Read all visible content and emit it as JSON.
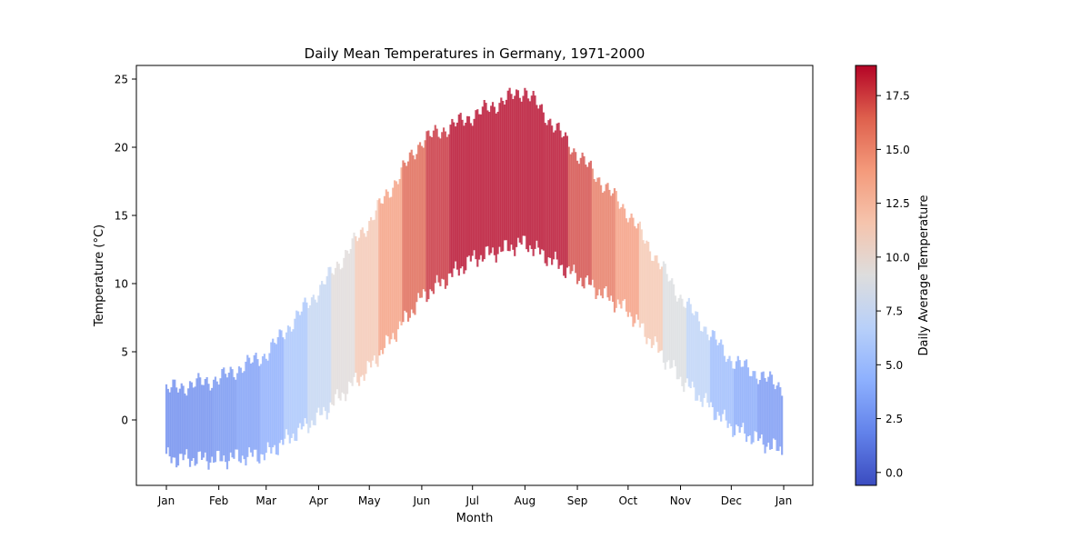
{
  "chart_data": {
    "type": "bar",
    "subtype": "floating-range",
    "title": "Daily Mean Temperatures in Germany, 1971-2000",
    "xlabel": "Month",
    "ylabel": "Temperature (°C)",
    "x_ticks": [
      "Jan",
      "Feb",
      "Mar",
      "Apr",
      "May",
      "Jun",
      "Jul",
      "Aug",
      "Sep",
      "Oct",
      "Nov",
      "Dec",
      "Jan"
    ],
    "y_ticks": [
      "0",
      "5",
      "10",
      "15",
      "20",
      "25"
    ],
    "ylim": [
      -4.8,
      26.0
    ],
    "grid": false,
    "colorbar": {
      "label": "Daily Average Temperature",
      "range": [
        -0.6,
        18.9
      ],
      "ticks": [
        "0.0",
        "2.5",
        "5.0",
        "7.5",
        "10.0",
        "12.5",
        "15.0",
        "17.5"
      ],
      "colormap": "coolwarm",
      "low_color": "#3b4cc0",
      "mid_color": "#dddddd",
      "high_color": "#b40426"
    },
    "x_unit": "day of year (Jan 1 to Dec 31, ticks at month starts)",
    "daily_range_knots": [
      {
        "day": 0,
        "low": -2.8,
        "high": 2.2
      },
      {
        "day": 31,
        "low": -2.9,
        "high": 3.0
      },
      {
        "day": 59,
        "low": -2.5,
        "high": 4.8
      },
      {
        "day": 90,
        "low": 0.2,
        "high": 9.5
      },
      {
        "day": 120,
        "low": 3.8,
        "high": 14.5
      },
      {
        "day": 151,
        "low": 9.0,
        "high": 20.5
      },
      {
        "day": 181,
        "low": 11.8,
        "high": 22.3
      },
      {
        "day": 212,
        "low": 13.0,
        "high": 24.2
      },
      {
        "day": 243,
        "low": 10.5,
        "high": 19.5
      },
      {
        "day": 273,
        "low": 8.0,
        "high": 15.2
      },
      {
        "day": 304,
        "low": 3.0,
        "high": 9.0
      },
      {
        "day": 334,
        "low": -0.5,
        "high": 4.4
      },
      {
        "day": 364,
        "low": -2.3,
        "high": 2.4
      }
    ]
  }
}
